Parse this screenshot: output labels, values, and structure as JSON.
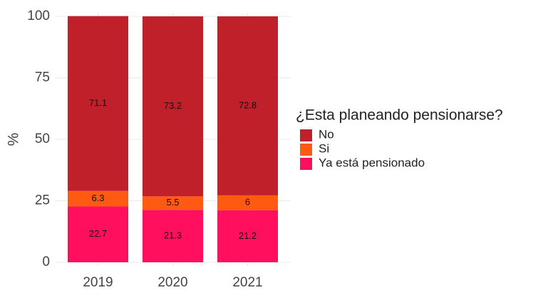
{
  "chart_data": {
    "type": "stacked_bar",
    "categories": [
      "2019",
      "2020",
      "2021"
    ],
    "series": [
      {
        "name": "No",
        "color": "#c0202a",
        "values": [
          71.1,
          73.2,
          72.8
        ]
      },
      {
        "name": "Si",
        "color": "#ff5a12",
        "values": [
          6.3,
          5.5,
          6
        ]
      },
      {
        "name": "Ya está pensionado",
        "color": "#ff0f5e",
        "values": [
          22.7,
          21.3,
          21.2
        ]
      }
    ],
    "ylabel": "%",
    "legend_title": "¿Esta planeando pensionarse?",
    "ylim": [
      0,
      100
    ],
    "yticks": [
      0,
      25,
      50,
      75,
      100
    ],
    "grid": true,
    "legend": "right"
  }
}
